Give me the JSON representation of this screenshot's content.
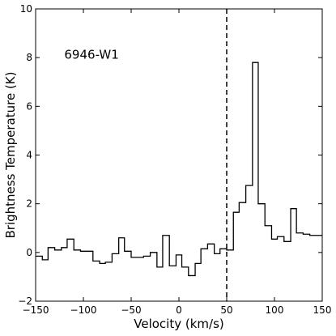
{
  "chart_data": {
    "type": "line",
    "style": "step",
    "annotation": "6946-W1",
    "xlabel": "Velocity (km/s)",
    "ylabel": "Brightness Temperature (K)",
    "xlim": [
      -150,
      150
    ],
    "ylim": [
      -2,
      10
    ],
    "xticks": [
      -150,
      -100,
      -50,
      0,
      50,
      100,
      150
    ],
    "yticks": [
      -2,
      0,
      2,
      4,
      6,
      8,
      10
    ],
    "xticklabels": [
      "−150",
      "−100",
      "−50",
      "0",
      "50",
      "100",
      "150"
    ],
    "yticklabels": [
      "−2",
      "0",
      "2",
      "4",
      "6",
      "8",
      "10"
    ],
    "grid": false,
    "vline": {
      "x": 50,
      "style": "dashed"
    },
    "series": [
      {
        "line_color": "#000000",
        "bin_edges": [
          -150,
          -143,
          -137,
          -130,
          -123,
          -117,
          -110,
          -103,
          -97,
          -90,
          -83,
          -77,
          -70,
          -63,
          -57,
          -50,
          -43,
          -37,
          -30,
          -23,
          -17,
          -10,
          -3,
          3,
          10,
          17,
          23,
          30,
          37,
          43,
          50,
          57,
          63,
          70,
          77,
          83,
          90,
          97,
          103,
          110,
          117,
          123,
          130,
          137,
          143,
          150
        ],
        "values": [
          -0.15,
          -0.3,
          0.2,
          0.1,
          0.2,
          0.55,
          0.1,
          0.05,
          0.05,
          -0.35,
          -0.45,
          -0.4,
          -0.05,
          0.6,
          0.05,
          -0.2,
          -0.2,
          -0.15,
          0.0,
          -0.6,
          0.7,
          -0.55,
          -0.1,
          -0.6,
          -0.95,
          -0.45,
          0.15,
          0.35,
          -0.05,
          0.15,
          0.1,
          1.65,
          2.05,
          2.75,
          7.8,
          2.0,
          1.1,
          0.55,
          0.65,
          0.45,
          1.8,
          0.8,
          0.75,
          0.7,
          0.7
        ]
      }
    ]
  }
}
